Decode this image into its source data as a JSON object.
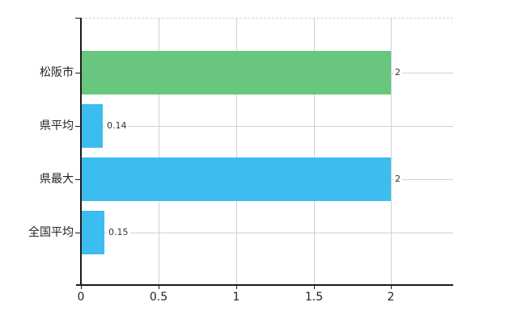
{
  "chart_data": {
    "type": "bar",
    "orientation": "horizontal",
    "title": "",
    "xlabel": "",
    "ylabel": "",
    "categories": [
      "松阪市",
      "県平均",
      "県最大",
      "全国平均"
    ],
    "values": [
      2,
      0.14,
      2,
      0.15
    ],
    "value_labels": [
      "2",
      "0.14",
      "2",
      "0.15"
    ],
    "bar_colors": [
      "#68c67e",
      "#3cbdf0",
      "#3cbdf0",
      "#3cbdf0"
    ],
    "xlim": [
      0,
      2.4
    ],
    "xticks": [
      0,
      0.5,
      1,
      1.5,
      2
    ],
    "xtick_labels": [
      "0",
      "0.5",
      "1",
      "1.5",
      "2"
    ],
    "grid": true,
    "legend": false
  },
  "colors": {
    "background": "#ffffff",
    "axis": "#1b1b1b",
    "gridline": "#d0d0d0",
    "row_line": "#d0d0d0",
    "top_border_dashed": "#d4d4d4",
    "category_text": "#222222",
    "tick_text": "#222222",
    "value_text": "#333333"
  }
}
